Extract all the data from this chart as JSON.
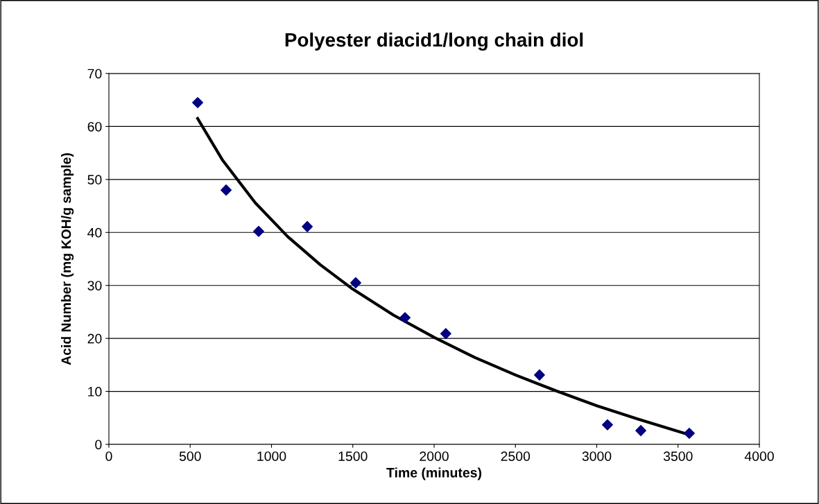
{
  "chart_data": {
    "type": "scatter",
    "title": "Polyester diacid1/long chain diol",
    "xlabel": "Time (minutes)",
    "ylabel": "Acid Number (mg KOH/g sample)",
    "xlim": [
      0,
      4000
    ],
    "xticks": [
      0,
      500,
      1000,
      1500,
      2000,
      2500,
      3000,
      3500,
      4000
    ],
    "ylim": [
      0,
      70
    ],
    "yticks": [
      0,
      10,
      20,
      30,
      40,
      50,
      60,
      70
    ],
    "grid": "y",
    "legend": false,
    "series": [
      {
        "color": "#000080",
        "marker": "diamond",
        "x": [
          546,
          721,
          921,
          1220,
          1518,
          1821,
          2072,
          2648,
          3066,
          3271,
          3569
        ],
        "values": [
          64.5,
          48.0,
          40.2,
          41.1,
          30.5,
          23.9,
          20.9,
          13.1,
          3.7,
          2.6,
          2.1
        ]
      },
      {
        "type": "line",
        "color": "#000000",
        "marker": "none",
        "line_style": "solid",
        "x": [
          546,
          700,
          900,
          1100,
          1300,
          1500,
          1750,
          2000,
          2250,
          2500,
          2750,
          3000,
          3250,
          3569
        ],
        "values": [
          61.5,
          53.6,
          45.6,
          39.2,
          33.9,
          29.3,
          24.4,
          20.2,
          16.4,
          13.1,
          10.1,
          7.3,
          4.8,
          1.8
        ]
      }
    ]
  }
}
